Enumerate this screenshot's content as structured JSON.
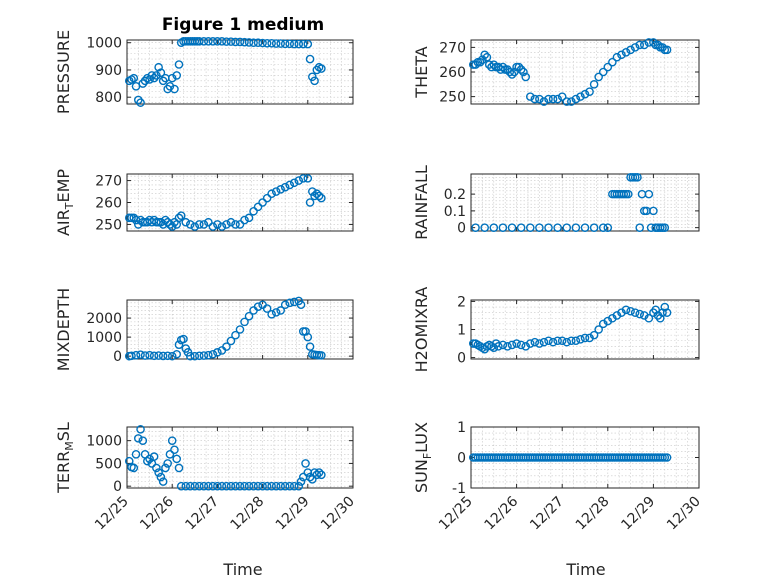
{
  "title": "Figure 1 medium",
  "colors": {
    "marker": "#0072BD",
    "axes": "#262626",
    "grid": "#c8c8c8"
  },
  "x_tick_labels": [
    "12/25",
    "12/26",
    "12/27",
    "12/28",
    "12/29",
    "12/30"
  ],
  "x_tick_values": [
    0,
    1,
    2,
    3,
    4,
    5
  ],
  "xlabel": "Time",
  "chart_data": [
    {
      "type": "scatter",
      "ylabel": "PRESSURE",
      "xlim": [
        0,
        5
      ],
      "ylim": [
        775,
        1010
      ],
      "yticks": [
        800,
        900,
        1000
      ],
      "ytick_labels": [
        "800",
        "900",
        "1000"
      ],
      "grid": true,
      "x": [
        0.05,
        0.1,
        0.15,
        0.2,
        0.25,
        0.3,
        0.35,
        0.4,
        0.45,
        0.5,
        0.55,
        0.6,
        0.65,
        0.7,
        0.75,
        0.8,
        0.85,
        0.9,
        0.95,
        1.0,
        1.05,
        1.1,
        1.15,
        1.2,
        1.25,
        1.3,
        1.35,
        1.4,
        1.45,
        1.5,
        1.55,
        1.6,
        1.7,
        1.8,
        1.9,
        2.0,
        2.1,
        2.2,
        2.3,
        2.4,
        2.5,
        2.6,
        2.7,
        2.8,
        2.9,
        3.0,
        3.1,
        3.2,
        3.3,
        3.4,
        3.5,
        3.6,
        3.7,
        3.8,
        3.9,
        4.0,
        4.05,
        4.1,
        4.15,
        4.2,
        4.25,
        4.3
      ],
      "y": [
        860,
        865,
        870,
        840,
        790,
        780,
        850,
        860,
        870,
        865,
        880,
        870,
        880,
        910,
        890,
        860,
        870,
        830,
        840,
        870,
        830,
        880,
        920,
        1000,
        1005,
        1005,
        1005,
        1005,
        1005,
        1005,
        1005,
        1005,
        1005,
        1005,
        1005,
        1005,
        1005,
        1004,
        1004,
        1003,
        1003,
        1002,
        1001,
        1000,
        1000,
        999,
        998,
        998,
        997,
        997,
        996,
        996,
        995,
        995,
        995,
        995,
        940,
        875,
        860,
        900,
        910,
        905
      ]
    },
    {
      "type": "scatter",
      "ylabel": "THETA",
      "xlim": [
        0,
        5
      ],
      "ylim": [
        247,
        273
      ],
      "yticks": [
        250,
        260,
        270
      ],
      "ytick_labels": [
        "250",
        "260",
        "270"
      ],
      "grid": true,
      "x": [
        0.05,
        0.1,
        0.15,
        0.2,
        0.25,
        0.3,
        0.35,
        0.4,
        0.45,
        0.5,
        0.55,
        0.6,
        0.65,
        0.7,
        0.75,
        0.8,
        0.85,
        0.9,
        0.95,
        1.0,
        1.05,
        1.1,
        1.15,
        1.2,
        1.3,
        1.4,
        1.5,
        1.6,
        1.7,
        1.8,
        1.9,
        2.0,
        2.1,
        2.2,
        2.3,
        2.4,
        2.5,
        2.6,
        2.7,
        2.8,
        2.9,
        3.0,
        3.1,
        3.2,
        3.3,
        3.4,
        3.5,
        3.6,
        3.7,
        3.8,
        3.9,
        4.0,
        4.05,
        4.1,
        4.15,
        4.2,
        4.25,
        4.3
      ],
      "y": [
        263,
        263,
        264,
        264,
        265,
        267,
        266,
        263,
        262,
        263,
        262,
        262,
        261,
        262,
        261,
        261,
        260,
        259,
        260,
        262,
        262,
        261,
        260,
        258,
        250,
        249,
        249,
        248,
        249,
        249,
        249,
        250,
        248,
        248,
        249,
        250,
        251,
        252,
        255,
        258,
        260,
        262,
        264,
        266,
        267,
        268,
        269,
        270,
        271,
        271,
        272,
        272,
        271,
        271,
        270,
        270,
        269,
        269
      ]
    },
    {
      "type": "scatter",
      "ylabel": "AIR_TEMP",
      "xlim": [
        0,
        5
      ],
      "ylim": [
        247,
        273
      ],
      "yticks": [
        250,
        260,
        270
      ],
      "ytick_labels": [
        "250",
        "260",
        "270"
      ],
      "grid": true,
      "x": [
        0.05,
        0.1,
        0.15,
        0.2,
        0.25,
        0.3,
        0.35,
        0.4,
        0.45,
        0.5,
        0.55,
        0.6,
        0.65,
        0.7,
        0.75,
        0.8,
        0.85,
        0.9,
        0.95,
        1.0,
        1.05,
        1.1,
        1.15,
        1.2,
        1.3,
        1.4,
        1.5,
        1.6,
        1.7,
        1.8,
        1.9,
        2.0,
        2.1,
        2.2,
        2.3,
        2.4,
        2.5,
        2.6,
        2.7,
        2.8,
        2.9,
        3.0,
        3.1,
        3.2,
        3.3,
        3.4,
        3.5,
        3.6,
        3.7,
        3.8,
        3.9,
        4.0,
        4.05,
        4.1,
        4.15,
        4.2,
        4.25,
        4.3
      ],
      "y": [
        253,
        253,
        253,
        252,
        250,
        252,
        251,
        251,
        251,
        252,
        251,
        252,
        251,
        251,
        251,
        250,
        252,
        251,
        250,
        249,
        251,
        250,
        253,
        254,
        251,
        250,
        249,
        250,
        250,
        251,
        249,
        250,
        249,
        250,
        251,
        250,
        250,
        252,
        253,
        256,
        258,
        260,
        262,
        264,
        265,
        266,
        267,
        268,
        269,
        270,
        271,
        271,
        260,
        265,
        263,
        264,
        263,
        262
      ]
    },
    {
      "type": "scatter",
      "ylabel": "RAINFALL",
      "xlim": [
        0,
        5
      ],
      "ylim": [
        -0.02,
        0.32
      ],
      "yticks": [
        0,
        0.1,
        0.2
      ],
      "ytick_labels": [
        "0",
        "0.1",
        "0.2"
      ],
      "grid": true,
      "x": [
        0.1,
        0.3,
        0.5,
        0.7,
        0.9,
        1.1,
        1.3,
        1.5,
        1.7,
        1.9,
        2.1,
        2.3,
        2.5,
        2.7,
        2.9,
        3.0,
        3.1,
        3.15,
        3.2,
        3.25,
        3.3,
        3.35,
        3.4,
        3.45,
        3.5,
        3.55,
        3.6,
        3.65,
        3.7,
        3.75,
        3.8,
        3.85,
        3.9,
        3.95,
        4.0,
        4.05,
        4.1,
        4.15,
        4.2,
        4.25
      ],
      "y": [
        0,
        0,
        0,
        0,
        0,
        0,
        0,
        0,
        0,
        0,
        0,
        0,
        0,
        0,
        0,
        0,
        0.2,
        0.2,
        0.2,
        0.2,
        0.2,
        0.2,
        0.2,
        0.2,
        0.3,
        0.3,
        0.3,
        0.3,
        0,
        0.2,
        0.1,
        0.1,
        0.2,
        0,
        0.1,
        0,
        0,
        0,
        0,
        0
      ]
    },
    {
      "type": "scatter",
      "ylabel": "MIXDEPTH",
      "xlim": [
        0,
        5
      ],
      "ylim": [
        -150,
        2950
      ],
      "yticks": [
        0,
        1000,
        2000
      ],
      "ytick_labels": [
        "0",
        "1000",
        "2000"
      ],
      "grid": true,
      "x": [
        0.05,
        0.1,
        0.2,
        0.3,
        0.4,
        0.5,
        0.6,
        0.7,
        0.8,
        0.9,
        1.0,
        1.1,
        1.15,
        1.2,
        1.25,
        1.3,
        1.35,
        1.4,
        1.5,
        1.6,
        1.7,
        1.8,
        1.9,
        2.0,
        2.1,
        2.2,
        2.3,
        2.4,
        2.5,
        2.6,
        2.7,
        2.8,
        2.9,
        3.0,
        3.1,
        3.2,
        3.3,
        3.4,
        3.5,
        3.6,
        3.7,
        3.8,
        3.85,
        3.9,
        3.95,
        4.0,
        4.05,
        4.1,
        4.15,
        4.2,
        4.25,
        4.3
      ],
      "y": [
        0,
        20,
        50,
        80,
        30,
        50,
        20,
        30,
        10,
        20,
        0,
        100,
        600,
        850,
        900,
        400,
        200,
        0,
        0,
        20,
        30,
        50,
        100,
        200,
        300,
        500,
        800,
        1100,
        1400,
        1800,
        2100,
        2400,
        2600,
        2700,
        2500,
        2200,
        2300,
        2400,
        2700,
        2800,
        2850,
        2900,
        2700,
        1300,
        1300,
        1000,
        500,
        100,
        80,
        60,
        50,
        40
      ]
    },
    {
      "type": "scatter",
      "ylabel": "H2OMIXRA",
      "xlim": [
        0,
        5
      ],
      "ylim": [
        -0.05,
        2.05
      ],
      "yticks": [
        0,
        1,
        2
      ],
      "ytick_labels": [
        "0",
        "1",
        "2"
      ],
      "grid": true,
      "x": [
        0.05,
        0.1,
        0.15,
        0.2,
        0.25,
        0.3,
        0.35,
        0.4,
        0.45,
        0.5,
        0.55,
        0.6,
        0.7,
        0.8,
        0.9,
        1.0,
        1.1,
        1.2,
        1.3,
        1.4,
        1.5,
        1.6,
        1.7,
        1.8,
        1.9,
        2.0,
        2.1,
        2.2,
        2.3,
        2.4,
        2.5,
        2.6,
        2.7,
        2.8,
        2.9,
        3.0,
        3.1,
        3.2,
        3.3,
        3.4,
        3.5,
        3.6,
        3.7,
        3.8,
        3.9,
        4.0,
        4.05,
        4.1,
        4.15,
        4.2,
        4.25,
        4.3
      ],
      "y": [
        0.5,
        0.5,
        0.45,
        0.4,
        0.35,
        0.3,
        0.4,
        0.45,
        0.4,
        0.35,
        0.5,
        0.4,
        0.45,
        0.4,
        0.45,
        0.5,
        0.45,
        0.4,
        0.5,
        0.55,
        0.5,
        0.55,
        0.6,
        0.55,
        0.6,
        0.6,
        0.55,
        0.6,
        0.6,
        0.65,
        0.7,
        0.7,
        0.8,
        1.0,
        1.2,
        1.3,
        1.4,
        1.5,
        1.6,
        1.7,
        1.65,
        1.6,
        1.55,
        1.5,
        1.4,
        1.6,
        1.7,
        1.5,
        1.4,
        1.6,
        1.8,
        1.6
      ]
    },
    {
      "type": "scatter",
      "ylabel": "TERR_MSL",
      "xlim": [
        0,
        5
      ],
      "ylim": [
        -40,
        1300
      ],
      "yticks": [
        0,
        500,
        1000
      ],
      "ytick_labels": [
        "0",
        "500",
        "1000"
      ],
      "grid": true,
      "x": [
        0.05,
        0.1,
        0.15,
        0.2,
        0.25,
        0.3,
        0.35,
        0.4,
        0.45,
        0.5,
        0.55,
        0.6,
        0.65,
        0.7,
        0.75,
        0.8,
        0.85,
        0.9,
        0.95,
        1.0,
        1.05,
        1.1,
        1.15,
        1.2,
        1.3,
        1.4,
        1.5,
        1.6,
        1.7,
        1.8,
        1.9,
        2.0,
        2.1,
        2.2,
        2.3,
        2.4,
        2.5,
        2.6,
        2.7,
        2.8,
        2.9,
        3.0,
        3.1,
        3.2,
        3.3,
        3.4,
        3.5,
        3.6,
        3.7,
        3.8,
        3.85,
        3.9,
        3.95,
        4.0,
        4.05,
        4.1,
        4.15,
        4.2,
        4.25,
        4.3
      ],
      "y": [
        550,
        420,
        400,
        700,
        1050,
        1250,
        1000,
        700,
        550,
        600,
        500,
        650,
        400,
        300,
        200,
        100,
        400,
        500,
        700,
        1000,
        800,
        600,
        400,
        0,
        0,
        0,
        0,
        0,
        0,
        0,
        0,
        0,
        0,
        0,
        0,
        0,
        0,
        0,
        0,
        0,
        0,
        0,
        0,
        0,
        0,
        0,
        0,
        0,
        0,
        0,
        100,
        200,
        500,
        300,
        200,
        150,
        300,
        250,
        300,
        250
      ]
    },
    {
      "type": "scatter",
      "ylabel": "SUN_FLUX",
      "xlim": [
        0,
        5
      ],
      "ylim": [
        -1,
        1
      ],
      "yticks": [
        -1,
        0,
        1
      ],
      "ytick_labels": [
        "-1",
        "0",
        "1"
      ],
      "grid": true,
      "x": [
        0.05,
        0.1,
        0.15,
        0.2,
        0.25,
        0.3,
        0.35,
        0.4,
        0.45,
        0.5,
        0.55,
        0.6,
        0.65,
        0.7,
        0.75,
        0.8,
        0.85,
        0.9,
        0.95,
        1.0,
        1.05,
        1.1,
        1.15,
        1.2,
        1.25,
        1.3,
        1.35,
        1.4,
        1.45,
        1.5,
        1.55,
        1.6,
        1.65,
        1.7,
        1.75,
        1.8,
        1.85,
        1.9,
        1.95,
        2.0,
        2.05,
        2.1,
        2.15,
        2.2,
        2.25,
        2.3,
        2.35,
        2.4,
        2.45,
        2.5,
        2.55,
        2.6,
        2.65,
        2.7,
        2.75,
        2.8,
        2.85,
        2.9,
        2.95,
        3.0,
        3.05,
        3.1,
        3.15,
        3.2,
        3.25,
        3.3,
        3.35,
        3.4,
        3.45,
        3.5,
        3.55,
        3.6,
        3.65,
        3.7,
        3.75,
        3.8,
        3.85,
        3.9,
        3.95,
        4.0,
        4.05,
        4.1,
        4.15,
        4.2,
        4.25,
        4.3
      ],
      "y": [
        0,
        0,
        0,
        0,
        0,
        0,
        0,
        0,
        0,
        0,
        0,
        0,
        0,
        0,
        0,
        0,
        0,
        0,
        0,
        0,
        0,
        0,
        0,
        0,
        0,
        0,
        0,
        0,
        0,
        0,
        0,
        0,
        0,
        0,
        0,
        0,
        0,
        0,
        0,
        0,
        0,
        0,
        0,
        0,
        0,
        0,
        0,
        0,
        0,
        0,
        0,
        0,
        0,
        0,
        0,
        0,
        0,
        0,
        0,
        0,
        0,
        0,
        0,
        0,
        0,
        0,
        0,
        0,
        0,
        0,
        0,
        0,
        0,
        0,
        0,
        0,
        0,
        0,
        0,
        0,
        0,
        0,
        0,
        0,
        0,
        0
      ]
    }
  ]
}
